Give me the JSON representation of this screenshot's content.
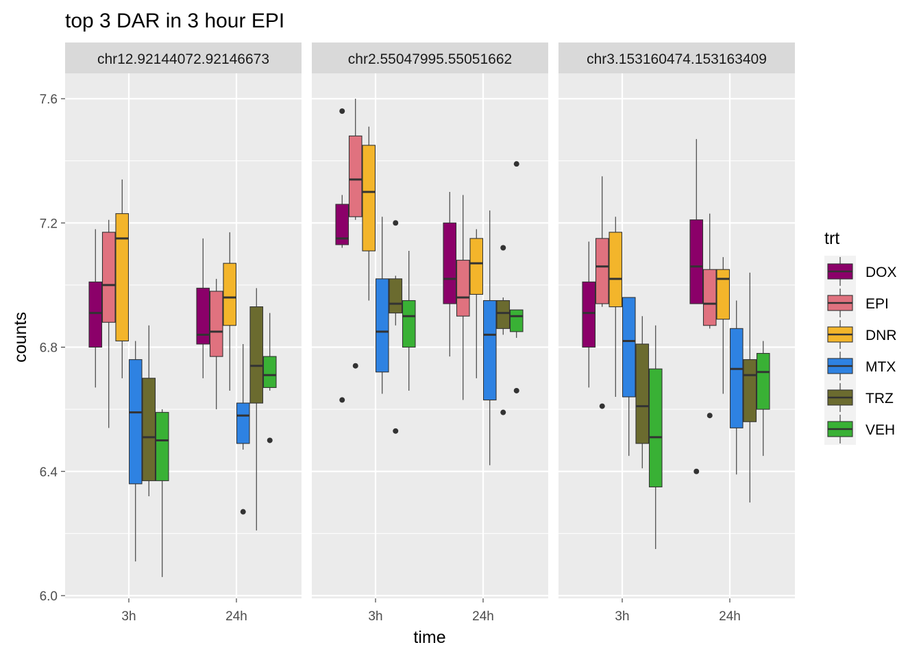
{
  "chart_data": {
    "type": "boxplot",
    "title": "top 3 DAR in 3 hour EPI",
    "xlabel": "time",
    "ylabel": "counts",
    "ylim": [
      6.0,
      7.7
    ],
    "y_ticks": [
      6.0,
      6.4,
      6.8,
      7.2,
      7.6
    ],
    "y_tick_labels": [
      "6.0",
      "6.4",
      "6.8",
      "7.2",
      "7.6"
    ],
    "categories": [
      "3h",
      "24h"
    ],
    "legend": {
      "title": "trt",
      "position": "right",
      "entries": [
        "DOX",
        "EPI",
        "DNR",
        "MTX",
        "TRZ",
        "VEH"
      ]
    },
    "colors": {
      "DOX": "#8B0069",
      "EPI": "#E0727F",
      "DNR": "#F3B52B",
      "MTX": "#2E82E2",
      "TRZ": "#6B6B2F",
      "VEH": "#39B135",
      "panel_bg": "#EBEBEB",
      "strip_bg": "#D9D9D9",
      "grid": "#FFFFFF"
    },
    "grid": true,
    "panels": [
      {
        "label": "chr12.92144072.92146673",
        "boxes": {
          "3h": {
            "DOX": {
              "min": 6.67,
              "q1": 6.8,
              "median": 6.91,
              "q3": 7.01,
              "max": 7.18,
              "outliers": []
            },
            "EPI": {
              "min": 6.54,
              "q1": 6.88,
              "median": 7.0,
              "q3": 7.17,
              "max": 7.21,
              "outliers": []
            },
            "DNR": {
              "min": 6.7,
              "q1": 6.82,
              "median": 7.15,
              "q3": 7.23,
              "max": 7.34,
              "outliers": []
            },
            "MTX": {
              "min": 6.11,
              "q1": 6.36,
              "median": 6.59,
              "q3": 6.76,
              "max": 6.82,
              "outliers": []
            },
            "TRZ": {
              "min": 6.32,
              "q1": 6.37,
              "median": 6.51,
              "q3": 6.7,
              "max": 6.87,
              "outliers": []
            },
            "VEH": {
              "min": 6.06,
              "q1": 6.37,
              "median": 6.5,
              "q3": 6.59,
              "max": 6.6,
              "outliers": []
            }
          },
          "24h": {
            "DOX": {
              "min": 6.7,
              "q1": 6.81,
              "median": 6.84,
              "q3": 6.99,
              "max": 7.15,
              "outliers": []
            },
            "EPI": {
              "min": 6.6,
              "q1": 6.77,
              "median": 6.85,
              "q3": 6.98,
              "max": 7.02,
              "outliers": []
            },
            "DNR": {
              "min": 6.66,
              "q1": 6.87,
              "median": 6.96,
              "q3": 7.07,
              "max": 7.17,
              "outliers": []
            },
            "MTX": {
              "min": 6.47,
              "q1": 6.49,
              "median": 6.58,
              "q3": 6.62,
              "max": 6.81,
              "outliers": [
                6.27
              ]
            },
            "TRZ": {
              "min": 6.21,
              "q1": 6.62,
              "median": 6.74,
              "q3": 6.93,
              "max": 6.99,
              "outliers": []
            },
            "VEH": {
              "min": 6.66,
              "q1": 6.67,
              "median": 6.71,
              "q3": 6.77,
              "max": 6.91,
              "outliers": [
                6.5
              ]
            }
          }
        }
      },
      {
        "label": "chr2.55047995.55051662",
        "boxes": {
          "3h": {
            "DOX": {
              "min": 7.12,
              "q1": 7.13,
              "median": 7.15,
              "q3": 7.26,
              "max": 7.29,
              "outliers": [
                7.56,
                6.63
              ]
            },
            "EPI": {
              "min": 7.21,
              "q1": 7.22,
              "median": 7.34,
              "q3": 7.48,
              "max": 7.6,
              "outliers": [
                6.74
              ]
            },
            "DNR": {
              "min": 6.95,
              "q1": 7.11,
              "median": 7.3,
              "q3": 7.45,
              "max": 7.51,
              "outliers": []
            },
            "MTX": {
              "min": 6.65,
              "q1": 6.72,
              "median": 6.85,
              "q3": 7.02,
              "max": 7.22,
              "outliers": []
            },
            "TRZ": {
              "min": 6.87,
              "q1": 6.91,
              "median": 6.94,
              "q3": 7.02,
              "max": 7.03,
              "outliers": [
                7.2,
                6.53
              ]
            },
            "VEH": {
              "min": 6.66,
              "q1": 6.8,
              "median": 6.9,
              "q3": 6.95,
              "max": 7.11,
              "outliers": []
            }
          },
          "24h": {
            "DOX": {
              "min": 6.77,
              "q1": 6.94,
              "median": 7.02,
              "q3": 7.2,
              "max": 7.3,
              "outliers": []
            },
            "EPI": {
              "min": 6.63,
              "q1": 6.9,
              "median": 6.96,
              "q3": 7.08,
              "max": 7.29,
              "outliers": []
            },
            "DNR": {
              "min": 6.7,
              "q1": 6.97,
              "median": 7.07,
              "q3": 7.15,
              "max": 7.18,
              "outliers": []
            },
            "MTX": {
              "min": 6.42,
              "q1": 6.63,
              "median": 6.84,
              "q3": 6.95,
              "max": 7.24,
              "outliers": []
            },
            "TRZ": {
              "min": 6.84,
              "q1": 6.86,
              "median": 6.91,
              "q3": 6.95,
              "max": 6.96,
              "outliers": [
                7.12,
                6.59
              ]
            },
            "VEH": {
              "min": 6.83,
              "q1": 6.85,
              "median": 6.9,
              "q3": 6.92,
              "max": 6.92,
              "outliers": [
                7.39,
                6.66
              ]
            }
          }
        }
      },
      {
        "label": "chr3.153160474.153163409",
        "boxes": {
          "3h": {
            "DOX": {
              "min": 6.67,
              "q1": 6.8,
              "median": 6.91,
              "q3": 7.01,
              "max": 7.14,
              "outliers": []
            },
            "EPI": {
              "min": 6.93,
              "q1": 6.94,
              "median": 7.06,
              "q3": 7.15,
              "max": 7.35,
              "outliers": [
                6.61
              ]
            },
            "DNR": {
              "min": 6.64,
              "q1": 6.93,
              "median": 7.02,
              "q3": 7.17,
              "max": 7.22,
              "outliers": []
            },
            "MTX": {
              "min": 6.45,
              "q1": 6.64,
              "median": 6.82,
              "q3": 6.96,
              "max": 6.96,
              "outliers": []
            },
            "TRZ": {
              "min": 6.41,
              "q1": 6.49,
              "median": 6.61,
              "q3": 6.81,
              "max": 6.9,
              "outliers": []
            },
            "VEH": {
              "min": 6.15,
              "q1": 6.35,
              "median": 6.51,
              "q3": 6.73,
              "max": 6.87,
              "outliers": []
            }
          },
          "24h": {
            "DOX": {
              "min": 6.94,
              "q1": 6.94,
              "median": 7.06,
              "q3": 7.21,
              "max": 7.47,
              "outliers": [
                6.4
              ]
            },
            "EPI": {
              "min": 6.86,
              "q1": 6.87,
              "median": 6.94,
              "q3": 7.05,
              "max": 7.23,
              "outliers": [
                6.58
              ]
            },
            "DNR": {
              "min": 6.65,
              "q1": 6.89,
              "median": 7.02,
              "q3": 7.05,
              "max": 7.09,
              "outliers": []
            },
            "MTX": {
              "min": 6.39,
              "q1": 6.54,
              "median": 6.73,
              "q3": 6.86,
              "max": 6.95,
              "outliers": []
            },
            "TRZ": {
              "min": 6.3,
              "q1": 6.56,
              "median": 6.71,
              "q3": 6.76,
              "max": 7.04,
              "outliers": []
            },
            "VEH": {
              "min": 6.45,
              "q1": 6.6,
              "median": 6.72,
              "q3": 6.78,
              "max": 6.82,
              "outliers": []
            }
          }
        }
      }
    ]
  }
}
